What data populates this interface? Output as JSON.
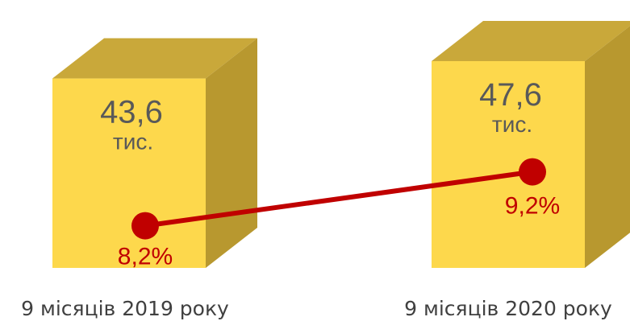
{
  "chart_data": {
    "type": "bar",
    "categories": [
      "9 місяців 2019 року",
      "9 місяців 2020 року"
    ],
    "values": [
      43.6,
      47.6
    ],
    "value_labels": [
      "43,6",
      "47,6"
    ],
    "unit_label": "тис.",
    "line_series": {
      "values": [
        8.2,
        9.2
      ],
      "labels": [
        "8,2%",
        "9,2%"
      ]
    },
    "title": "",
    "xlabel": "",
    "ylabel": "",
    "legend": "none",
    "grid": false
  },
  "colors": {
    "bar_front": "#FDD84C",
    "bar_top": "#C9A83A",
    "bar_side": "#B8982F",
    "line": "#C00000",
    "line_label": "#C00000",
    "value_text": "#595959",
    "category_text": "#404040"
  }
}
